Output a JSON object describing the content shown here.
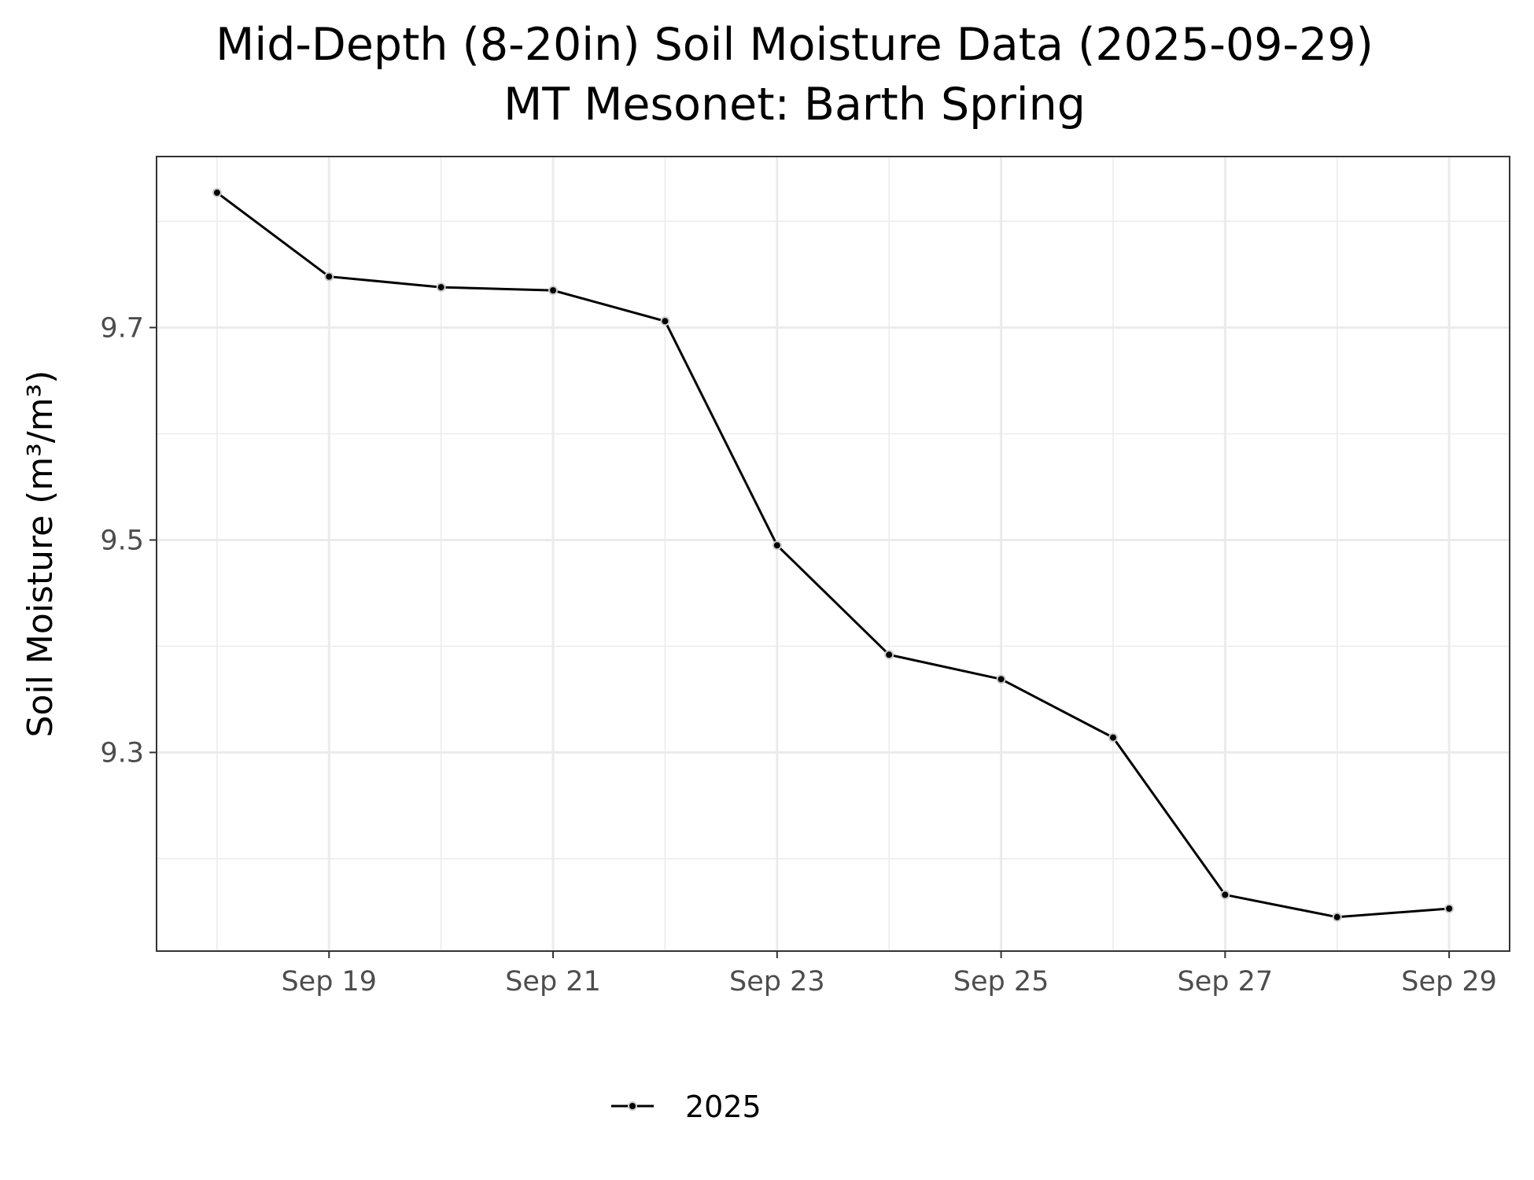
{
  "chart_data": {
    "type": "line",
    "title": "Mid-Depth (8-20in) Soil Moisture Data (2025-09-29)",
    "subtitle": "MT Mesonet: Barth Spring",
    "xlabel": "",
    "ylabel": "Soil Moisture (m³/m³)",
    "x": [
      "2025-09-18",
      "2025-09-19",
      "2025-09-20",
      "2025-09-21",
      "2025-09-22",
      "2025-09-23",
      "2025-09-24",
      "2025-09-25",
      "2025-09-26",
      "2025-09-27",
      "2025-09-28",
      "2025-09-29"
    ],
    "x_day": [
      18,
      19,
      20,
      21,
      22,
      23,
      24,
      25,
      26,
      27,
      28,
      29
    ],
    "series": [
      {
        "name": "2025",
        "color": "#000000",
        "values": [
          9.827,
          9.748,
          9.738,
          9.735,
          9.706,
          9.495,
          9.392,
          9.369,
          9.314,
          9.166,
          9.145,
          9.153
        ]
      }
    ],
    "xlim": [
      17.46,
      29.54
    ],
    "ylim": [
      9.113,
      9.861
    ],
    "x_ticks": [
      19,
      21,
      23,
      25,
      27,
      29
    ],
    "x_tick_labels": [
      "Sep 19",
      "Sep 21",
      "Sep 23",
      "Sep 25",
      "Sep 27",
      "Sep 29"
    ],
    "y_ticks": [
      9.3,
      9.5,
      9.7
    ],
    "y_tick_labels": [
      "9.3",
      "9.5",
      "9.7"
    ],
    "grid": true,
    "legend": {
      "placement": "bottom",
      "entries": [
        "2025"
      ]
    }
  }
}
